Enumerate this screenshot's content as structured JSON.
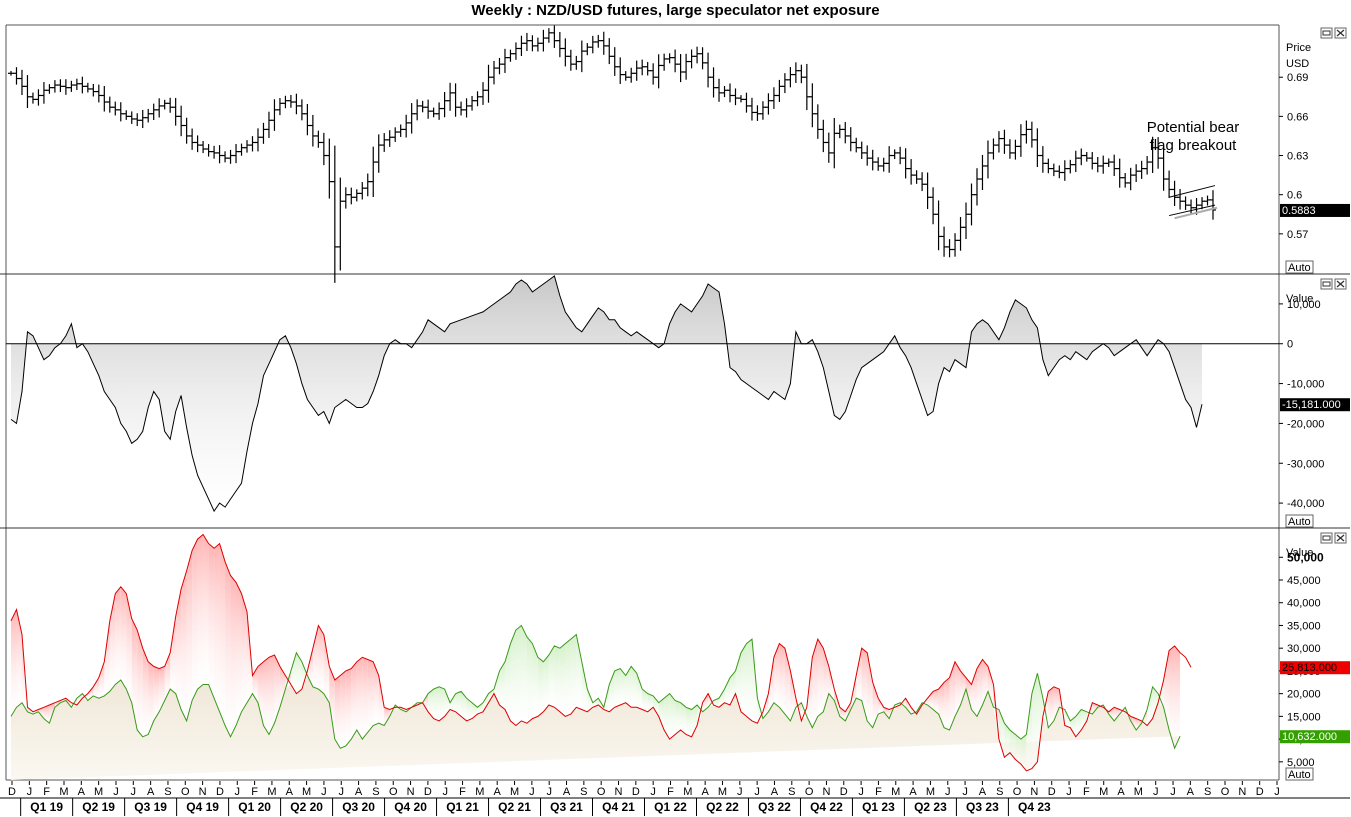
{
  "title": "Weekly : NZD/USD futures, large speculator net exposure",
  "colors": {
    "price_line": "#000000",
    "net_fill": "#c8c8c8",
    "long_line": "#3a9a1a",
    "short_line": "#dd0000",
    "short_fill": "#ffb3b3",
    "long_fill": "#d4f0c8",
    "last_short_badge": "#ee0000",
    "last_long_badge": "#33a000"
  },
  "panel_controls": {
    "restore_icon": "restore-icon",
    "close_icon": "close-icon",
    "auto_label": "Auto"
  },
  "chart_data": [
    {
      "type": "ohlc",
      "name": "price-panel",
      "axis_title": [
        "Price",
        "USD"
      ],
      "ylim": [
        0.54,
        0.73
      ],
      "yticks": [
        0.57,
        0.6,
        0.63,
        0.66,
        0.69
      ],
      "ytick_labels": [
        "0.57",
        "0.6",
        "0.63",
        "0.66",
        "0.69"
      ],
      "last_value_label": "0.5883",
      "last_value": 0.5883,
      "annotation": [
        "Potential bear",
        "flag breakout"
      ],
      "values": [
        0.693,
        0.689,
        0.683,
        0.675,
        0.673,
        0.676,
        0.68,
        0.682,
        0.684,
        0.683,
        0.682,
        0.684,
        0.685,
        0.683,
        0.681,
        0.679,
        0.676,
        0.671,
        0.667,
        0.665,
        0.662,
        0.66,
        0.658,
        0.657,
        0.659,
        0.662,
        0.665,
        0.668,
        0.67,
        0.667,
        0.66,
        0.653,
        0.645,
        0.64,
        0.638,
        0.635,
        0.633,
        0.632,
        0.63,
        0.628,
        0.63,
        0.633,
        0.636,
        0.638,
        0.64,
        0.644,
        0.65,
        0.657,
        0.665,
        0.67,
        0.672,
        0.671,
        0.668,
        0.662,
        0.653,
        0.645,
        0.64,
        0.63,
        0.61,
        0.56,
        0.595,
        0.6,
        0.598,
        0.601,
        0.605,
        0.61,
        0.625,
        0.638,
        0.642,
        0.644,
        0.648,
        0.65,
        0.655,
        0.662,
        0.668,
        0.667,
        0.664,
        0.662,
        0.666,
        0.672,
        0.678,
        0.667,
        0.665,
        0.668,
        0.672,
        0.675,
        0.68,
        0.69,
        0.697,
        0.7,
        0.705,
        0.708,
        0.712,
        0.716,
        0.718,
        0.714,
        0.716,
        0.72,
        0.724,
        0.718,
        0.712,
        0.706,
        0.7,
        0.702,
        0.71,
        0.713,
        0.717,
        0.718,
        0.714,
        0.706,
        0.698,
        0.692,
        0.69,
        0.693,
        0.697,
        0.698,
        0.695,
        0.69,
        0.699,
        0.704,
        0.705,
        0.7,
        0.694,
        0.702,
        0.706,
        0.708,
        0.701,
        0.69,
        0.682,
        0.678,
        0.68,
        0.676,
        0.674,
        0.673,
        0.668,
        0.663,
        0.662,
        0.667,
        0.672,
        0.676,
        0.683,
        0.688,
        0.692,
        0.695,
        0.69,
        0.675,
        0.662,
        0.65,
        0.64,
        0.632,
        0.647,
        0.65,
        0.645,
        0.64,
        0.636,
        0.632,
        0.628,
        0.625,
        0.622,
        0.624,
        0.63,
        0.632,
        0.628,
        0.62,
        0.615,
        0.612,
        0.608,
        0.598,
        0.585,
        0.568,
        0.56,
        0.558,
        0.565,
        0.575,
        0.585,
        0.6,
        0.612,
        0.622,
        0.632,
        0.638,
        0.643,
        0.638,
        0.632,
        0.637,
        0.646,
        0.65,
        0.642,
        0.63,
        0.624,
        0.62,
        0.618,
        0.617,
        0.62,
        0.623,
        0.628,
        0.63,
        0.628,
        0.624,
        0.622,
        0.624,
        0.625,
        0.62,
        0.613,
        0.609,
        0.615,
        0.618,
        0.62,
        0.625,
        0.636,
        0.628,
        0.612,
        0.604,
        0.598,
        0.595,
        0.592,
        0.59,
        0.592,
        0.595,
        0.596,
        0.5883
      ]
    },
    {
      "type": "area",
      "name": "net-exposure-panel",
      "axis_title": [
        "Value"
      ],
      "ylim": [
        -46000,
        17000
      ],
      "yticks": [
        -40000,
        -30000,
        -20000,
        -10000,
        0,
        10000
      ],
      "ytick_labels": [
        "-40,000",
        "-30,000",
        "-20,000",
        "-10,000",
        "0",
        "10,000"
      ],
      "last_value_label": "-15,181.000",
      "last_value": -15181,
      "values": [
        -19000,
        -20000,
        -12000,
        3000,
        2000,
        -1000,
        -4000,
        -3000,
        -1000,
        0,
        2000,
        5000,
        -1000,
        0,
        -2000,
        -5000,
        -8000,
        -12000,
        -14000,
        -16000,
        -20000,
        -22000,
        -25000,
        -24000,
        -22000,
        -16000,
        -12000,
        -14000,
        -22000,
        -24000,
        -17000,
        -13000,
        -21000,
        -28000,
        -33000,
        -36000,
        -39000,
        -42000,
        -40000,
        -41000,
        -39000,
        -37000,
        -35000,
        -27000,
        -20000,
        -15000,
        -8000,
        -5000,
        -2000,
        1000,
        2000,
        -1000,
        -5000,
        -10000,
        -14000,
        -16000,
        -18000,
        -17000,
        -20000,
        -16000,
        -15000,
        -14000,
        -15000,
        -16000,
        -16000,
        -15000,
        -12000,
        -8000,
        -3000,
        0,
        1000,
        0,
        0,
        -1000,
        1000,
        3000,
        6000,
        5000,
        4000,
        3000,
        5000,
        5500,
        6000,
        6500,
        7000,
        7500,
        8000,
        9000,
        10000,
        11000,
        12000,
        13000,
        15000,
        16000,
        15000,
        13000,
        14000,
        15000,
        16000,
        17000,
        12000,
        8000,
        6000,
        4000,
        3000,
        5000,
        7000,
        9000,
        8000,
        6000,
        6000,
        4000,
        3000,
        2000,
        3000,
        2000,
        1000,
        0,
        -1000,
        0,
        5000,
        8000,
        10000,
        9000,
        8000,
        10000,
        12000,
        15000,
        14000,
        13000,
        5000,
        -6000,
        -7000,
        -9000,
        -10000,
        -11000,
        -12000,
        -13000,
        -14000,
        -12000,
        -13000,
        -14000,
        -10000,
        3000,
        0,
        0,
        1000,
        -2000,
        -6000,
        -12000,
        -18000,
        -19000,
        -17000,
        -13000,
        -9000,
        -6000,
        -5000,
        -4000,
        -3000,
        -2000,
        0,
        2000,
        -1000,
        -3000,
        -6000,
        -10000,
        -14000,
        -18000,
        -17000,
        -10000,
        -6000,
        -7000,
        -4000,
        -5000,
        -6000,
        3000,
        5000,
        6000,
        5000,
        3000,
        1000,
        4000,
        8000,
        11000,
        10000,
        9000,
        6000,
        4000,
        -4000,
        -8000,
        -6000,
        -4000,
        -3000,
        -4000,
        -2000,
        -3000,
        -4000,
        -2000,
        -1000,
        0,
        -1000,
        -3000,
        -2000,
        -1000,
        0,
        1000,
        -1000,
        -3000,
        -1000,
        1000,
        0,
        -2000,
        -6000,
        -10000,
        -14000,
        -16000,
        -21000,
        -15181
      ]
    },
    {
      "type": "area",
      "name": "longs-shorts-panel",
      "axis_title": [
        "Value"
      ],
      "ylim": [
        1000,
        56000
      ],
      "yticks": [
        5000,
        10000,
        15000,
        20000,
        25000,
        30000,
        35000,
        40000,
        45000,
        50000
      ],
      "ytick_labels": [
        "5,000",
        "10,000",
        "15,000",
        "20,000",
        "25,000",
        "30,000",
        "35,000",
        "40,000",
        "45,000",
        "50,000"
      ],
      "series": [
        {
          "name": "shorts",
          "last_value_label": "25,813.000",
          "values": [
            36000,
            38500,
            33000,
            17000,
            16000,
            16500,
            17000,
            17500,
            18000,
            18500,
            19000,
            18000,
            17500,
            19000,
            20000,
            21500,
            23500,
            27000,
            36000,
            42000,
            43500,
            42000,
            36500,
            34000,
            30000,
            27000,
            26000,
            25500,
            26000,
            29000,
            37000,
            43000,
            47000,
            51500,
            54000,
            55000,
            53000,
            52000,
            53000,
            49000,
            46000,
            44500,
            42000,
            38000,
            24000,
            26000,
            27000,
            28000,
            28500,
            26000,
            24000,
            22000,
            20000,
            21000,
            25000,
            30000,
            35000,
            33000,
            26000,
            23000,
            24000,
            25000,
            25500,
            27000,
            28000,
            27500,
            27000,
            24000,
            17000,
            16500,
            17000,
            17000,
            16500,
            17000,
            17500,
            18000,
            16000,
            14500,
            14000,
            15000,
            16500,
            16000,
            15000,
            14000,
            14500,
            15500,
            16000,
            18000,
            20000,
            17500,
            16500,
            14000,
            13000,
            14000,
            13500,
            14500,
            15000,
            16000,
            17500,
            17000,
            16000,
            15000,
            15500,
            17000,
            16500,
            16000,
            17000,
            17500,
            16500,
            16000,
            17000,
            17500,
            18000,
            17000,
            17000,
            16500,
            16000,
            17000,
            15000,
            12000,
            10000,
            11000,
            12000,
            11000,
            10500,
            13000,
            18000,
            20000,
            17500,
            17000,
            18000,
            17500,
            20000,
            16000,
            15000,
            14000,
            13500,
            16000,
            20000,
            28000,
            31000,
            30000,
            25000,
            19000,
            14000,
            17000,
            28000,
            32000,
            30000,
            26000,
            21000,
            17000,
            16000,
            18000,
            24000,
            30000,
            29000,
            22500,
            19000,
            17000,
            16500,
            17000,
            17500,
            19000,
            17000,
            15500,
            17500,
            19000,
            20500,
            21000,
            22500,
            23500,
            27000,
            25000,
            23500,
            22000,
            25500,
            27500,
            26000,
            22000,
            10000,
            6000,
            7000,
            5500,
            4500,
            3000,
            3500,
            5000,
            15000,
            20500,
            21500,
            21000,
            13000,
            12500,
            10500,
            12000,
            14000,
            18000,
            17500,
            17000,
            16000,
            17000,
            16500,
            16000,
            15000,
            14500,
            14000,
            13000,
            14500,
            18000,
            23000,
            29500,
            30500,
            29000,
            28000,
            25813
          ]
        },
        {
          "name": "longs",
          "last_value_label": "10,632.000",
          "values": [
            15000,
            17000,
            18000,
            16000,
            15500,
            16000,
            14500,
            13500,
            17000,
            18000,
            18500,
            17000,
            19000,
            20000,
            18500,
            19500,
            19000,
            19500,
            20500,
            22000,
            23000,
            21000,
            18000,
            12000,
            10500,
            11000,
            14000,
            16000,
            18500,
            21000,
            20000,
            16500,
            14000,
            18500,
            21000,
            22000,
            22000,
            19000,
            16000,
            13000,
            10500,
            13000,
            16000,
            18000,
            20000,
            18000,
            13000,
            11000,
            13500,
            17000,
            21000,
            25000,
            29000,
            27000,
            24000,
            21500,
            21000,
            20000,
            18000,
            10000,
            8000,
            8500,
            10000,
            12000,
            10000,
            11500,
            13000,
            13500,
            13000,
            15000,
            17500,
            16500,
            16000,
            17000,
            18000,
            18000,
            20000,
            21000,
            21500,
            21000,
            18000,
            20000,
            20500,
            19000,
            18000,
            17000,
            18000,
            20000,
            21000,
            25000,
            27000,
            31000,
            34000,
            35000,
            32500,
            31000,
            28000,
            27000,
            28500,
            30500,
            30000,
            31000,
            32000,
            33000,
            27000,
            21000,
            18000,
            19000,
            17000,
            22000,
            25000,
            25500,
            24000,
            26000,
            24500,
            21000,
            20000,
            19500,
            18000,
            19000,
            20000,
            18500,
            18000,
            17000,
            16500,
            17500,
            16000,
            17000,
            18500,
            19000,
            21000,
            23500,
            25000,
            29000,
            31000,
            32000,
            19000,
            14500,
            16000,
            18000,
            17000,
            15500,
            14000,
            17000,
            18000,
            15000,
            12500,
            15000,
            16000,
            20000,
            18500,
            15000,
            14000,
            16500,
            19000,
            18500,
            14000,
            12500,
            15500,
            16000,
            14500,
            17500,
            18000,
            17000,
            15500,
            16000,
            18000,
            17500,
            16500,
            15500,
            12500,
            12000,
            15000,
            17500,
            21000,
            16500,
            15000,
            17500,
            20500,
            17000,
            16500,
            13500,
            12000,
            11000,
            10000,
            11000,
            20000,
            24500,
            19000,
            12500,
            14000,
            17000,
            16500,
            14000,
            15000,
            16500,
            16000,
            15500,
            17000,
            17500,
            15500,
            14000,
            15500,
            17000,
            14000,
            12000,
            13500,
            16500,
            21500,
            20000,
            17000,
            12000,
            8000,
            10632
          ]
        }
      ]
    },
    {
      "type": "time-axis",
      "name": "time-axis",
      "month_labels": [
        "D",
        "J",
        "F",
        "M",
        "A",
        "M",
        "J",
        "J",
        "A",
        "S",
        "O",
        "N",
        "D",
        "J",
        "F",
        "M",
        "A",
        "M",
        "J",
        "J",
        "A",
        "S",
        "O",
        "N",
        "D",
        "J",
        "F",
        "M",
        "A",
        "M",
        "J",
        "J",
        "A",
        "S",
        "O",
        "N",
        "D",
        "J",
        "F",
        "M",
        "A",
        "M",
        "J",
        "J",
        "A",
        "S",
        "O",
        "N",
        "D",
        "J",
        "F",
        "M",
        "A",
        "M",
        "J",
        "J",
        "A",
        "S",
        "O",
        "N",
        "D",
        "J",
        "F",
        "M",
        "A",
        "M",
        "J",
        "J",
        "A",
        "S",
        "O",
        "N",
        "D",
        "J"
      ],
      "quarter_labels": [
        "Q1 19",
        "Q2 19",
        "Q3 19",
        "Q4 19",
        "Q1 20",
        "Q2 20",
        "Q3 20",
        "Q4 20",
        "Q1 21",
        "Q2 21",
        "Q3 21",
        "Q4 21",
        "Q1 22",
        "Q2 22",
        "Q3 22",
        "Q4 22",
        "Q1 23",
        "Q2 23",
        "Q3 23",
        "Q4 23"
      ]
    }
  ]
}
